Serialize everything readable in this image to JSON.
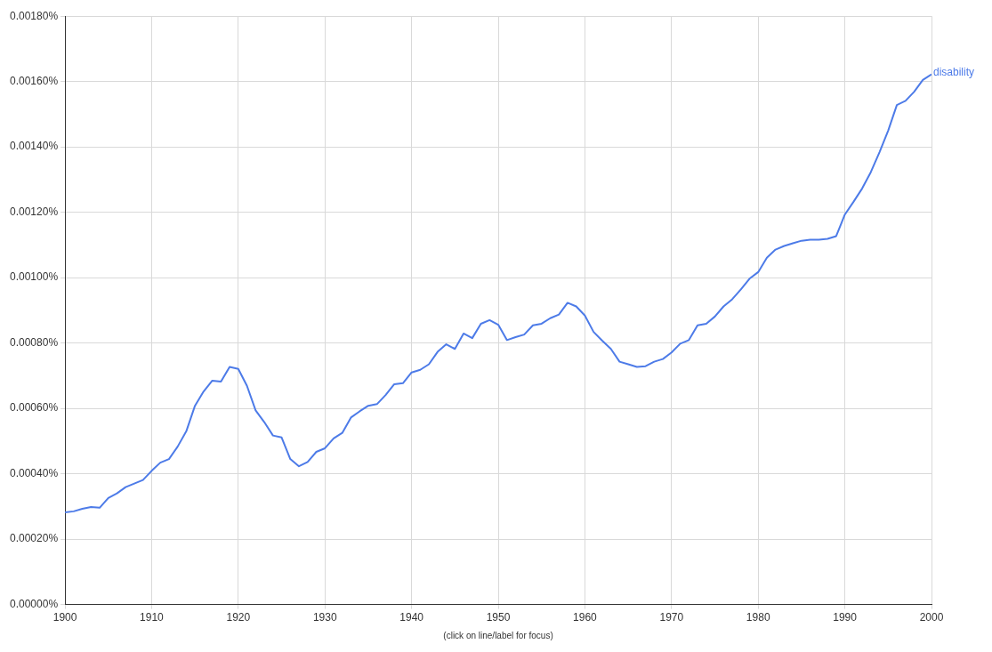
{
  "chart_data": {
    "type": "line",
    "xlabel": "(click on line/label for focus)",
    "x": [
      1900,
      1901,
      1902,
      1903,
      1904,
      1905,
      1906,
      1907,
      1908,
      1909,
      1910,
      1911,
      1912,
      1913,
      1914,
      1915,
      1916,
      1917,
      1918,
      1919,
      1920,
      1921,
      1922,
      1923,
      1924,
      1925,
      1926,
      1927,
      1928,
      1929,
      1930,
      1931,
      1932,
      1933,
      1934,
      1935,
      1936,
      1937,
      1938,
      1939,
      1940,
      1941,
      1942,
      1943,
      1944,
      1945,
      1946,
      1947,
      1948,
      1949,
      1950,
      1951,
      1952,
      1953,
      1954,
      1955,
      1956,
      1957,
      1958,
      1959,
      1960,
      1961,
      1962,
      1963,
      1964,
      1965,
      1966,
      1967,
      1968,
      1969,
      1970,
      1971,
      1972,
      1973,
      1974,
      1975,
      1976,
      1977,
      1978,
      1979,
      1980,
      1981,
      1982,
      1983,
      1984,
      1985,
      1986,
      1987,
      1988,
      1989,
      1990,
      1991,
      1992,
      1993,
      1994,
      1995,
      1996,
      1997,
      1998,
      1999,
      2000
    ],
    "series": [
      {
        "name": "disability",
        "color": "#4d7be8",
        "values": [
          0.000282,
          0.000285,
          0.000293,
          0.000298,
          0.000296,
          0.000326,
          0.00034,
          0.000359,
          0.00037,
          0.000381,
          0.000409,
          0.000434,
          0.000445,
          0.000483,
          0.00053,
          0.000608,
          0.000652,
          0.000685,
          0.000682,
          0.000727,
          0.000721,
          0.000669,
          0.000594,
          0.000558,
          0.000517,
          0.000511,
          0.000445,
          0.000423,
          0.000436,
          0.000467,
          0.000478,
          0.000508,
          0.000525,
          0.000572,
          0.000591,
          0.000608,
          0.000613,
          0.000641,
          0.000674,
          0.000677,
          0.00071,
          0.000718,
          0.000735,
          0.000773,
          0.000796,
          0.000782,
          0.000829,
          0.000815,
          0.000859,
          0.00087,
          0.000856,
          0.000809,
          0.000818,
          0.000826,
          0.000854,
          0.000859,
          0.000876,
          0.000887,
          0.000923,
          0.000912,
          0.000884,
          0.000834,
          0.000807,
          0.000782,
          0.000743,
          0.000735,
          0.000727,
          0.000729,
          0.000743,
          0.000751,
          0.000771,
          0.000798,
          0.000809,
          0.000854,
          0.000859,
          0.000881,
          0.000912,
          0.000934,
          0.000964,
          0.000997,
          0.001017,
          0.001061,
          0.001086,
          0.001097,
          0.001105,
          0.001113,
          0.001116,
          0.001116,
          0.001119,
          0.001127,
          0.001193,
          0.001232,
          0.001273,
          0.001323,
          0.001384,
          0.00145,
          0.001528,
          0.001541,
          0.001569,
          0.001605,
          0.001622
        ]
      }
    ],
    "xlim": [
      1900,
      2000
    ],
    "xticks": [
      1900,
      1910,
      1920,
      1930,
      1940,
      1950,
      1960,
      1970,
      1980,
      1990,
      2000
    ],
    "ylim": [
      0,
      0.0018
    ],
    "yticks": [
      {
        "value": 0,
        "label": "0.00000%"
      },
      {
        "value": 0.0002,
        "label": "0.00020%"
      },
      {
        "value": 0.0004,
        "label": "0.00040%"
      },
      {
        "value": 0.0006,
        "label": "0.00060%"
      },
      {
        "value": 0.0008,
        "label": "0.00080%"
      },
      {
        "value": 0.001,
        "label": "0.00100%"
      },
      {
        "value": 0.0012,
        "label": "0.00120%"
      },
      {
        "value": 0.0014,
        "label": "0.00140%"
      },
      {
        "value": 0.0016,
        "label": "0.00160%"
      },
      {
        "value": 0.0018,
        "label": "0.00180%"
      }
    ],
    "grid": true,
    "marker": "none",
    "line_style": "solid"
  }
}
